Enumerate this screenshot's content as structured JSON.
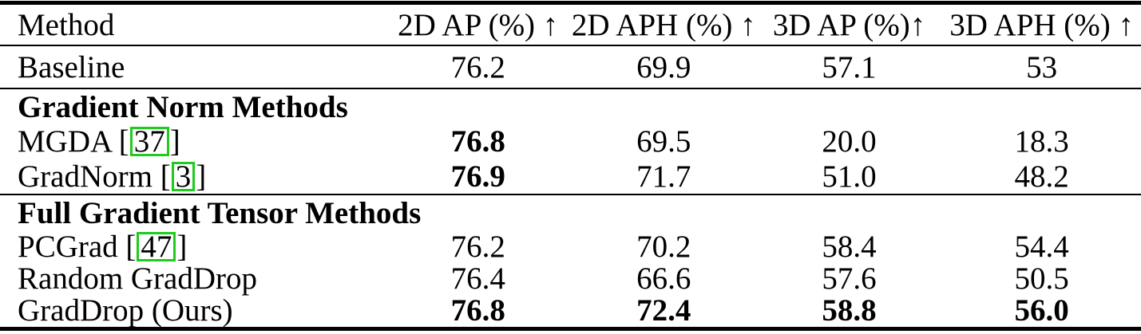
{
  "table": {
    "header": {
      "method": "Method",
      "col_2d_ap": "2D AP (%) ↑",
      "col_2d_aph": "2D APH (%) ↑",
      "col_3d_ap": "3D AP (%)↑",
      "col_3d_aph": "3D APH (%) ↑"
    },
    "baseline": {
      "method": "Baseline",
      "ap2d": "76.2",
      "aph2d": "69.9",
      "ap3d": "57.1",
      "aph3d": "53"
    },
    "section1": {
      "title": "Gradient Norm Methods"
    },
    "mgda": {
      "name": "MGDA [",
      "cite": "37",
      "close": "]",
      "ap2d": "76.8",
      "aph2d": "69.5",
      "ap3d": "20.0",
      "aph3d": "18.3"
    },
    "gradnorm": {
      "name": "GradNorm [",
      "cite": "3",
      "close": "]",
      "ap2d": "76.9",
      "aph2d": "71.7",
      "ap3d": "51.0",
      "aph3d": "48.2"
    },
    "section2": {
      "title": "Full Gradient Tensor Methods"
    },
    "pcgrad": {
      "name": "PCGrad [",
      "cite": "47",
      "close": "]",
      "ap2d": "76.2",
      "aph2d": "70.2",
      "ap3d": "58.4",
      "aph3d": "54.4"
    },
    "random_graddrop": {
      "method": "Random GradDrop",
      "ap2d": "76.4",
      "aph2d": "66.6",
      "ap3d": "57.6",
      "aph3d": "50.5"
    },
    "graddrop_ours": {
      "method": "GradDrop (Ours)",
      "ap2d": "76.8",
      "aph2d": "72.4",
      "ap3d": "58.8",
      "aph3d": "56.0"
    }
  },
  "colors": {
    "citation_box": "#1ecb1e",
    "rule": "#000000",
    "text": "#000000",
    "background": "#ffffff"
  }
}
